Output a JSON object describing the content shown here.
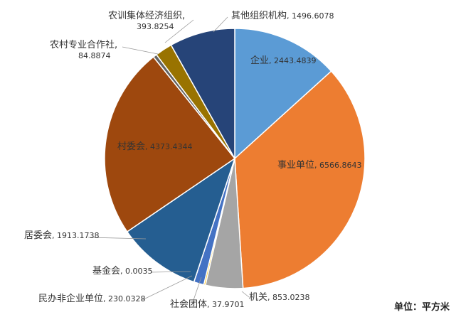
{
  "chart_data": {
    "type": "pie",
    "unit_label": "单位：平方米",
    "slices": [
      {
        "name": "企业",
        "value": 2443.4839,
        "value_text": "2443.4839",
        "color": "#5B9BD5"
      },
      {
        "name": "事业单位",
        "value": 6566.8643,
        "value_text": "6566.8643",
        "color": "#ED7D31"
      },
      {
        "name": "机关",
        "value": 853.0238,
        "value_text": "853.0238",
        "color": "#A5A5A5"
      },
      {
        "name": "社会团体",
        "value": 37.9701,
        "value_text": "37.9701",
        "color": "#FFC000"
      },
      {
        "name": "民办非企业单位",
        "value": 230.0328,
        "value_text": "230.0328",
        "color": "#4472C4"
      },
      {
        "name": "基金会",
        "value": 0.0035,
        "value_text": "0.0035",
        "color": "#70AD47"
      },
      {
        "name": "居委会",
        "value": 1913.1738,
        "value_text": "1913.1738",
        "color": "#255E91"
      },
      {
        "name": "村委会",
        "value": 4373.4344,
        "value_text": "4373.4344",
        "color": "#9E480E"
      },
      {
        "name": "农村专业合作社",
        "value": 84.8874,
        "value_text": "84.8874",
        "color": "#636363"
      },
      {
        "name": "农训集体经济组织",
        "value": 393.8254,
        "value_text": "393.8254",
        "color": "#997300"
      },
      {
        "name": "其他组织机构",
        "value": 1496.6078,
        "value_text": "1496.6078",
        "color": "#264478"
      }
    ]
  }
}
